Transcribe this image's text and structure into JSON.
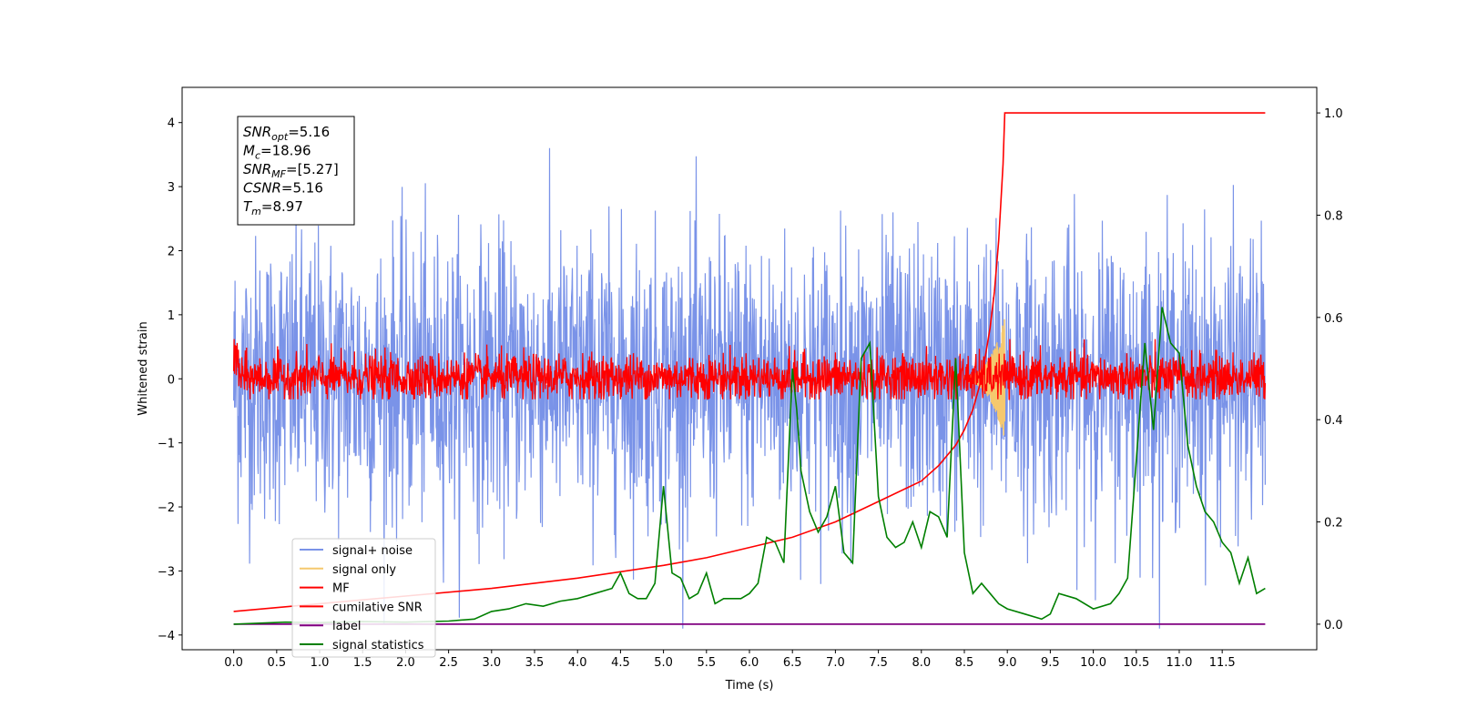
{
  "chart_data": {
    "type": "line",
    "title": "",
    "xlabel": "Time (s)",
    "ylabel": "Whitened strain",
    "y2label": "",
    "xlim": [
      -0.6,
      12.6
    ],
    "ylim": [
      -4.23,
      4.55
    ],
    "y2lim": [
      -0.05,
      1.05
    ],
    "x_ticks": [
      "0.0",
      "0.5",
      "1.0",
      "1.5",
      "2.0",
      "2.5",
      "3.0",
      "3.5",
      "4.0",
      "4.5",
      "5.0",
      "5.5",
      "6.0",
      "6.5",
      "7.0",
      "7.5",
      "8.0",
      "8.5",
      "9.0",
      "9.5",
      "10.0",
      "10.5",
      "11.0",
      "11.5"
    ],
    "y_ticks": [
      "4",
      "3",
      "2",
      "1",
      "0",
      "−1",
      "−2",
      "−3",
      "−4"
    ],
    "y2_ticks": [
      "1.0",
      "0.8",
      "0.6",
      "0.4",
      "0.2",
      "0.0"
    ],
    "legend_position": "lower-left",
    "colors": {
      "signal_noise": "#7a93e8",
      "signal_only": "#f5c86e",
      "mf": "#ff0000",
      "cumulative_snr": "#ff0000",
      "label": "#800080",
      "signal_statistics": "#007f00"
    },
    "series": [
      {
        "name": "signal+ noise",
        "axis": "left",
        "style": "noise",
        "x_range": [
          0.0,
          12.0
        ],
        "amplitude": 1.1
      },
      {
        "name": "signal only",
        "axis": "left",
        "style": "chirp",
        "x_range": [
          8.5,
          8.97
        ]
      },
      {
        "name": "MF",
        "axis": "left",
        "style": "noise",
        "x_range": [
          0.0,
          12.0
        ],
        "amplitude": 0.18
      },
      {
        "name": "cumilative SNR",
        "axis": "right",
        "x": [
          0.0,
          1.0,
          2.0,
          3.0,
          4.0,
          5.0,
          5.5,
          6.0,
          6.5,
          7.0,
          7.5,
          8.0,
          8.2,
          8.4,
          8.5,
          8.6,
          8.7,
          8.8,
          8.85,
          8.9,
          8.95,
          8.97,
          9.0,
          10.0,
          11.0,
          12.0
        ],
        "y": [
          0.025,
          0.04,
          0.055,
          0.07,
          0.09,
          0.115,
          0.13,
          0.15,
          0.17,
          0.2,
          0.24,
          0.28,
          0.31,
          0.35,
          0.38,
          0.42,
          0.48,
          0.58,
          0.65,
          0.75,
          0.9,
          1.0,
          1.0,
          1.0,
          1.0,
          1.0
        ]
      },
      {
        "name": "label",
        "axis": "right",
        "x": [
          0.0,
          12.0
        ],
        "y": [
          0.0,
          0.0
        ]
      },
      {
        "name": "signal statistics",
        "axis": "right",
        "x": [
          0.0,
          0.3,
          0.6,
          1.0,
          1.5,
          2.0,
          2.5,
          2.8,
          3.0,
          3.2,
          3.4,
          3.6,
          3.8,
          4.0,
          4.2,
          4.4,
          4.5,
          4.6,
          4.7,
          4.8,
          4.9,
          5.0,
          5.1,
          5.2,
          5.3,
          5.4,
          5.5,
          5.6,
          5.7,
          5.8,
          5.9,
          6.0,
          6.1,
          6.2,
          6.3,
          6.4,
          6.5,
          6.55,
          6.6,
          6.7,
          6.8,
          6.9,
          7.0,
          7.1,
          7.2,
          7.3,
          7.4,
          7.5,
          7.6,
          7.7,
          7.8,
          7.9,
          8.0,
          8.1,
          8.2,
          8.3,
          8.4,
          8.5,
          8.6,
          8.7,
          8.8,
          8.9,
          9.0,
          9.2,
          9.4,
          9.5,
          9.6,
          9.8,
          10.0,
          10.2,
          10.3,
          10.4,
          10.5,
          10.6,
          10.7,
          10.8,
          10.9,
          11.0,
          11.1,
          11.2,
          11.3,
          11.4,
          11.5,
          11.6,
          11.7,
          11.8,
          11.9,
          12.0
        ],
        "y": [
          0.0,
          0.002,
          0.004,
          0.003,
          0.005,
          0.004,
          0.006,
          0.01,
          0.025,
          0.03,
          0.04,
          0.035,
          0.045,
          0.05,
          0.06,
          0.07,
          0.1,
          0.06,
          0.05,
          0.05,
          0.08,
          0.27,
          0.1,
          0.09,
          0.05,
          0.06,
          0.1,
          0.04,
          0.05,
          0.05,
          0.05,
          0.06,
          0.08,
          0.17,
          0.16,
          0.12,
          0.5,
          0.42,
          0.3,
          0.22,
          0.18,
          0.21,
          0.27,
          0.14,
          0.12,
          0.52,
          0.55,
          0.25,
          0.17,
          0.15,
          0.16,
          0.2,
          0.15,
          0.22,
          0.21,
          0.17,
          0.52,
          0.14,
          0.06,
          0.08,
          0.06,
          0.04,
          0.03,
          0.02,
          0.01,
          0.02,
          0.06,
          0.05,
          0.03,
          0.04,
          0.06,
          0.09,
          0.32,
          0.55,
          0.38,
          0.62,
          0.55,
          0.53,
          0.35,
          0.27,
          0.22,
          0.2,
          0.16,
          0.14,
          0.08,
          0.13,
          0.06,
          0.07
        ]
      }
    ],
    "annotation": {
      "lines": [
        {
          "base": "SNR",
          "sub": "opt",
          "value": "=5.16"
        },
        {
          "base": "M",
          "sub": "c",
          "value": "=18.96"
        },
        {
          "base": "SNR",
          "sub": "MF",
          "value": "=[5.27]"
        },
        {
          "base": "CSNR",
          "sub": "",
          "value": "=5.16"
        },
        {
          "base": "T",
          "sub": "m",
          "value": "=8.97"
        }
      ]
    }
  }
}
